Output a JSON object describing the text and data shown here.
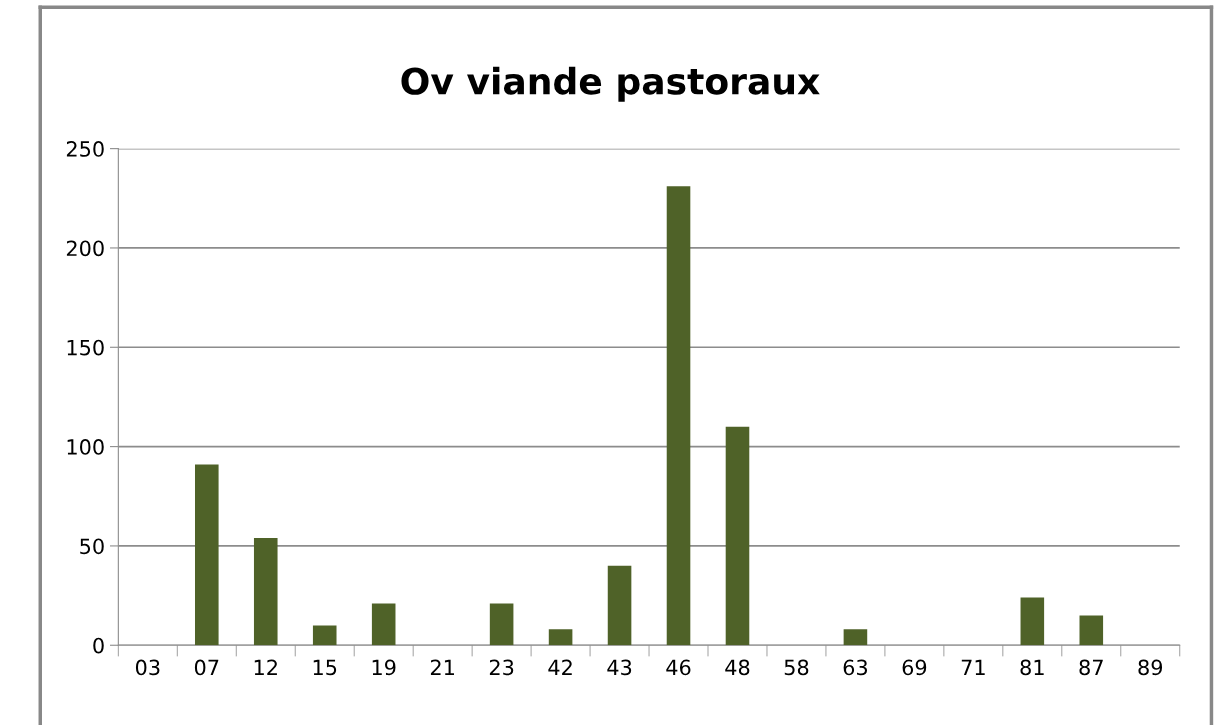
{
  "chart_data": {
    "type": "bar",
    "title": "Ov viande pastoraux",
    "categories": [
      "03",
      "07",
      "12",
      "15",
      "19",
      "21",
      "23",
      "42",
      "43",
      "46",
      "48",
      "58",
      "63",
      "69",
      "71",
      "81",
      "87",
      "89"
    ],
    "values": [
      0,
      91,
      54,
      10,
      21,
      0,
      21,
      8,
      40,
      231,
      110,
      0,
      8,
      0,
      0,
      24,
      15,
      0
    ],
    "color": "#4f6228",
    "ylim": [
      0,
      250
    ],
    "yticks": [
      0,
      50,
      100,
      150,
      200,
      250
    ],
    "grid": "y",
    "legend": false
  }
}
